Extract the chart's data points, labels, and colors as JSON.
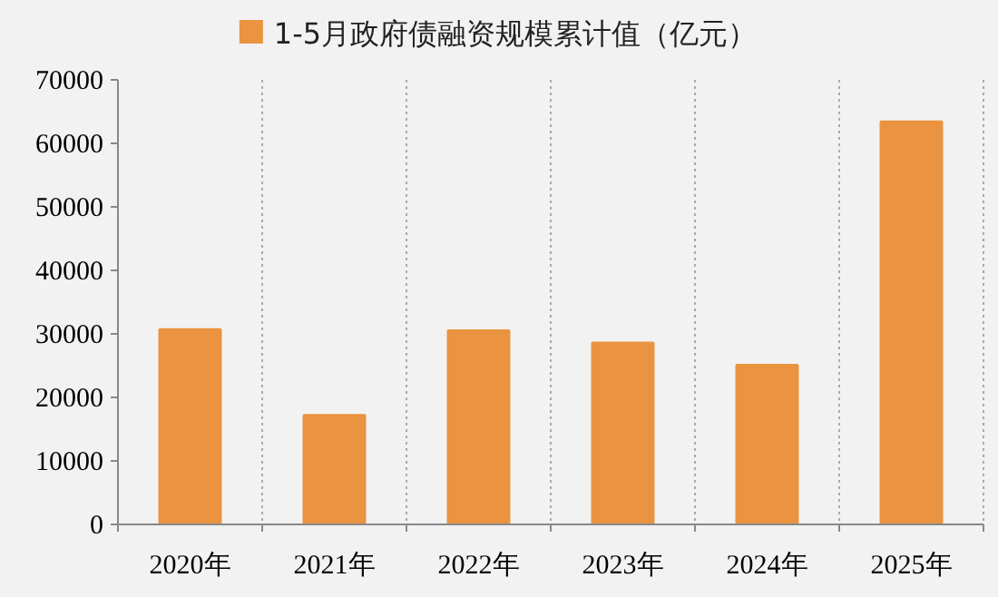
{
  "chart_data": {
    "type": "bar",
    "categories": [
      "2020年",
      "2021年",
      "2022年",
      "2023年",
      "2024年",
      "2025年"
    ],
    "series": [
      {
        "name": "1-5月政府债融资规模累计值（亿元）",
        "color": "#ea9340",
        "values": [
          30900,
          17400,
          30700,
          28800,
          25300,
          63600
        ]
      }
    ],
    "ylim": [
      0,
      70000
    ],
    "yticks": [
      0,
      10000,
      20000,
      30000,
      40000,
      50000,
      60000,
      70000
    ],
    "grid": "x",
    "legend": "top"
  }
}
